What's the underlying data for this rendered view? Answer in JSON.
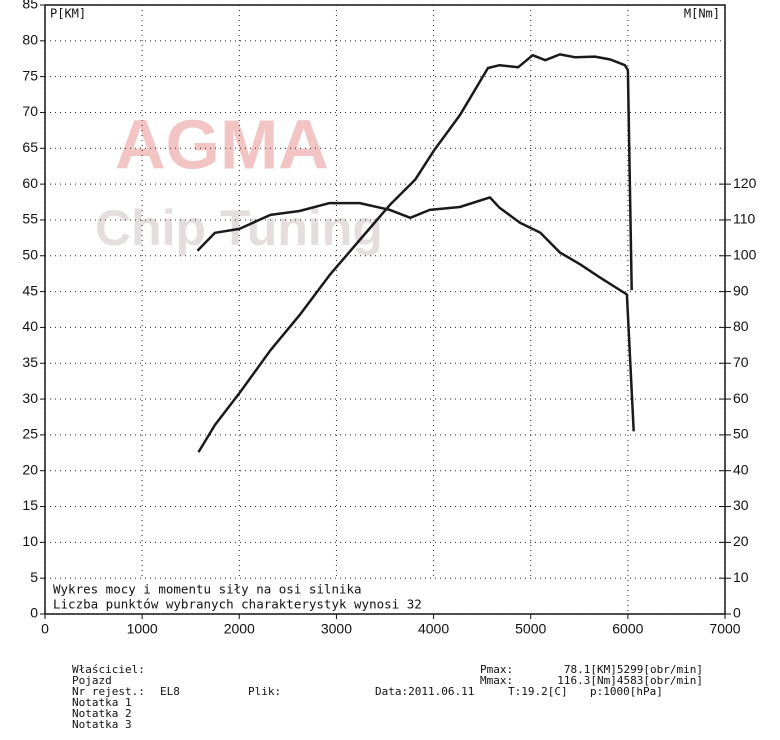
{
  "chart_data": {
    "type": "line",
    "y_label": "P[KM]",
    "y2_label": "M[Nm]",
    "watermark": [
      "AGMA",
      "Chip Tuning"
    ],
    "annotations": [
      "Wykres mocy i momentu siły na osi silnika",
      "Liczba punktów wybranych charakterystyk wynosi 32"
    ],
    "xlim": [
      0,
      7000
    ],
    "xticks": [
      0,
      1000,
      2000,
      3000,
      4000,
      5000,
      6000,
      7000
    ],
    "ylim": [
      0,
      85
    ],
    "yticks": [
      0,
      5,
      10,
      15,
      20,
      25,
      30,
      35,
      40,
      45,
      50,
      55,
      60,
      65,
      70,
      75,
      80,
      85
    ],
    "y2lim": [
      0,
      170
    ],
    "y2ticks": [
      0,
      10,
      20,
      30,
      40,
      50,
      60,
      70,
      80,
      90,
      100,
      110,
      120
    ],
    "grid": true,
    "series": [
      {
        "name": "P",
        "color": "#1a1a1a",
        "x": [
          1580,
          1750,
          2000,
          2320,
          2620,
          2930,
          3240,
          3550,
          3810,
          4010,
          4270,
          4560,
          4680,
          4870,
          5020,
          5150,
          5300,
          5460,
          5660,
          5820,
          5970,
          6000,
          6040
        ],
        "values": [
          22.6,
          26.4,
          30.8,
          36.8,
          41.7,
          47.3,
          52.2,
          57.1,
          60.6,
          64.8,
          69.6,
          76.2,
          76.6,
          76.3,
          78.0,
          77.3,
          78.1,
          77.7,
          77.8,
          77.4,
          76.6,
          75.9,
          45.2
        ]
      },
      {
        "name": "M",
        "color": "#1a1a1a",
        "axis": "y2",
        "x": [
          1570,
          1750,
          2000,
          2320,
          2620,
          2930,
          3240,
          3550,
          3760,
          3960,
          4270,
          4580,
          4680,
          4890,
          5100,
          5300,
          5510,
          5710,
          5990,
          6060
        ],
        "values": [
          101.4,
          106.4,
          107.5,
          111.4,
          112.5,
          114.7,
          114.7,
          112.8,
          110.6,
          112.8,
          113.6,
          116.3,
          113.4,
          109.2,
          106.4,
          100.9,
          97.6,
          94.0,
          89.2,
          51.0
        ]
      }
    ]
  },
  "footer": {
    "owner": "Właściciel:",
    "vehicle": "Pojazd",
    "reg": "Nr rejest.:",
    "reg_value": "EL8",
    "notes": [
      "Notatka 1",
      "Notatka 2",
      "Notatka 3"
    ],
    "file": "Plik:",
    "date": "Data:2011.06.11",
    "temp": "T:19.2[C]",
    "pressure": "p:1000[hPa]",
    "pmax_label": "Pmax:",
    "pmax": "78.1[KM]5299[obr/min]",
    "mmax_label": "Mmax:",
    "mmax": "116.3[Nm]4583[obr/min]"
  }
}
